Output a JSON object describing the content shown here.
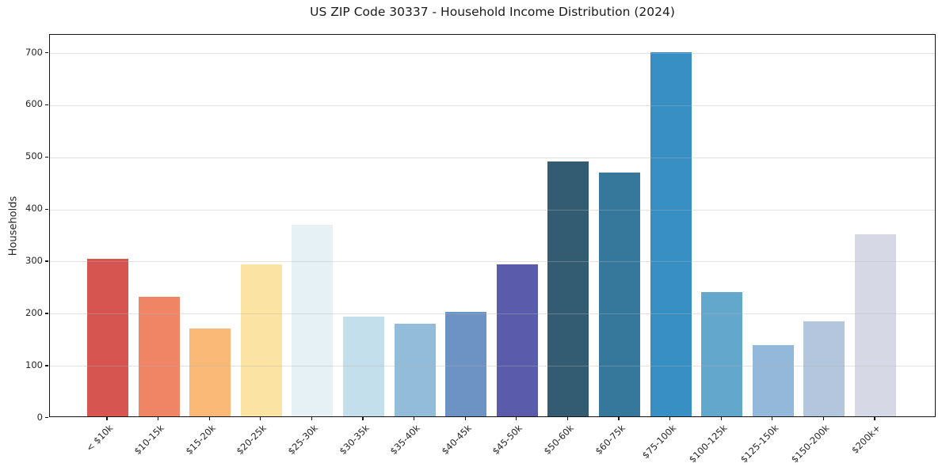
{
  "chart_data": {
    "type": "bar",
    "title": "US ZIP Code 30337 - Household Income Distribution (2024)",
    "xlabel": "",
    "ylabel": "Households",
    "ylim": [
      0,
      735
    ],
    "yticks": [
      0,
      100,
      200,
      300,
      400,
      500,
      600,
      700
    ],
    "grid": "horizontal",
    "legend": "none",
    "categories": [
      "< $10k",
      "$10-15k",
      "$15-20k",
      "$20-25k",
      "$25-30k",
      "$30-35k",
      "$35-40k",
      "$40-45k",
      "$45-50k",
      "$50-60k",
      "$60-75k",
      "$75-100k",
      "$100-125k",
      "$125-150k",
      "$150-200k",
      "$200k+"
    ],
    "values": [
      302,
      230,
      168,
      291,
      367,
      192,
      177,
      200,
      292,
      489,
      468,
      698,
      238,
      136,
      183,
      349
    ],
    "bar_colors": [
      "#d65551",
      "#f08566",
      "#fbb977",
      "#fbe3a3",
      "#e6f1f5",
      "#c3dfec",
      "#92bcd9",
      "#6d92c4",
      "#5a5cab",
      "#335c72",
      "#35789b",
      "#388fc4",
      "#63a7cd",
      "#94b8d9",
      "#b4c5de",
      "#d7d8e5"
    ],
    "spine_color": "#141414",
    "text_color": "#262626",
    "background_color": "#ffffff"
  }
}
